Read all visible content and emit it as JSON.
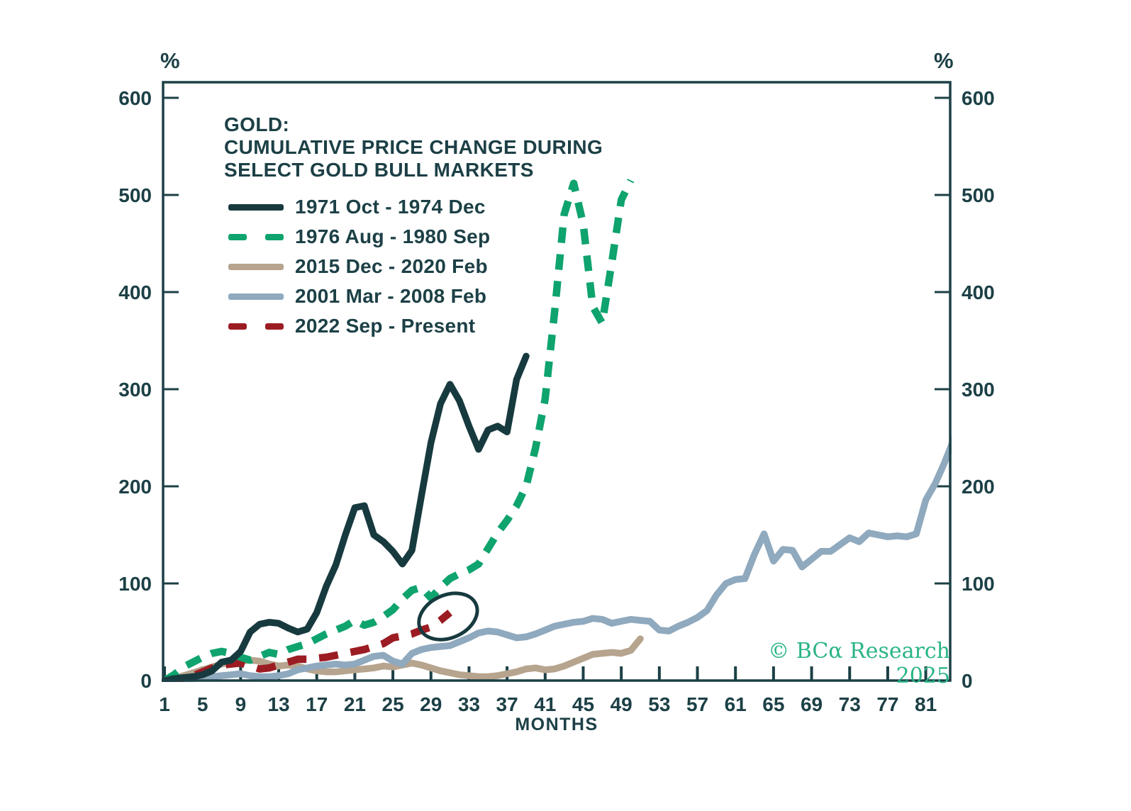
{
  "chart_data": {
    "type": "line",
    "title_lines": [
      "GOLD:",
      "CUMULATIVE PRICE CHANGE DURING",
      "SELECT GOLD BULL MARKETS"
    ],
    "ylabel_left": "%",
    "ylabel_right": "%",
    "xlabel": "MONTHS",
    "x_ticks": [
      1,
      5,
      9,
      13,
      17,
      21,
      25,
      29,
      33,
      37,
      41,
      45,
      49,
      53,
      57,
      61,
      65,
      69,
      73,
      77,
      81
    ],
    "y_ticks": [
      0,
      100,
      200,
      300,
      400,
      500,
      600
    ],
    "xlim": [
      1,
      83.7
    ],
    "ylim": [
      0,
      617
    ],
    "grid": false,
    "legend_position": "top-left",
    "axis_color": "#1c4046",
    "x_unit": "months",
    "y_unit": "percent",
    "series": [
      {
        "name": "1971 Oct - 1974 Dec",
        "color": "#173a3f",
        "line_style": "solid",
        "start_month": 1,
        "values": [
          0,
          2,
          3,
          4,
          6,
          10,
          19,
          21,
          30,
          50,
          58,
          60,
          59,
          54,
          50,
          53,
          70,
          97,
          119,
          150,
          178,
          180,
          150,
          143,
          133,
          120,
          134,
          190,
          245,
          285,
          305,
          288,
          262,
          238,
          258,
          262,
          256,
          310,
          334
        ]
      },
      {
        "name": "1976 Aug - 1980 Sep",
        "color": "#0fa36e",
        "line_style": "dashed",
        "start_month": 1,
        "values": [
          0,
          6,
          14,
          19,
          24,
          28,
          30,
          28,
          24,
          21,
          25,
          29,
          27,
          32,
          35,
          38,
          43,
          48,
          52,
          56,
          62,
          57,
          60,
          66,
          73,
          84,
          93,
          96,
          85,
          96,
          105,
          110,
          114,
          120,
          136,
          152,
          165,
          180,
          200,
          240,
          290,
          380,
          480,
          512,
          470,
          385,
          368,
          430,
          495,
          515
        ]
      },
      {
        "name": "2015 Dec - 2020 Feb",
        "color": "#b7a48e",
        "line_style": "solid",
        "start_month": 1,
        "values": [
          0,
          2,
          5,
          8,
          11,
          14,
          17,
          19,
          20,
          21,
          20,
          17,
          15,
          16,
          15,
          12,
          10,
          9,
          9,
          10,
          11,
          12,
          13,
          15,
          14,
          16,
          18,
          16,
          13,
          10,
          8,
          6,
          5,
          4,
          4,
          5,
          7,
          9,
          12,
          13,
          11,
          12,
          15,
          19,
          23,
          27,
          28,
          29,
          28,
          31,
          43
        ]
      },
      {
        "name": "2001 Mar - 2008 Feb",
        "color": "#8fa9be",
        "line_style": "solid",
        "start_month": 1,
        "values": [
          0,
          1,
          2,
          2,
          3,
          4,
          5,
          6,
          7,
          5,
          4,
          4,
          5,
          7,
          11,
          13,
          15,
          16,
          17,
          16,
          17,
          21,
          25,
          26,
          20,
          17,
          28,
          32,
          34,
          35,
          36,
          40,
          44,
          49,
          51,
          50,
          47,
          44,
          45,
          48,
          52,
          56,
          58,
          60,
          61,
          64,
          63,
          59,
          61,
          63,
          62,
          61,
          52,
          51,
          56,
          60,
          65,
          72,
          88,
          100,
          104,
          105,
          130,
          151,
          123,
          135,
          134,
          117,
          125,
          133,
          133,
          140,
          147,
          143,
          152,
          150,
          148,
          149,
          148,
          151,
          186,
          203,
          225,
          250
        ]
      },
      {
        "name": "2022 Sep - Present",
        "color": "#9c1c23",
        "line_style": "dashed",
        "start_month": 1,
        "values": [
          0,
          1,
          2,
          5,
          9,
          13,
          16,
          17,
          18,
          15,
          12,
          13,
          16,
          19,
          22,
          22,
          23,
          24,
          26,
          28,
          30,
          32,
          35,
          38,
          44,
          46,
          48,
          52,
          55,
          62,
          70
        ]
      }
    ],
    "annotation": {
      "type": "ellipse",
      "center_month": 30.8,
      "center_value": 66,
      "rx_months": 3.2,
      "ry_value": 22,
      "rotation_deg": -24,
      "color": "#173a3f"
    },
    "watermark": "© BCα Research 2025",
    "watermark_color": "#2ab486"
  }
}
